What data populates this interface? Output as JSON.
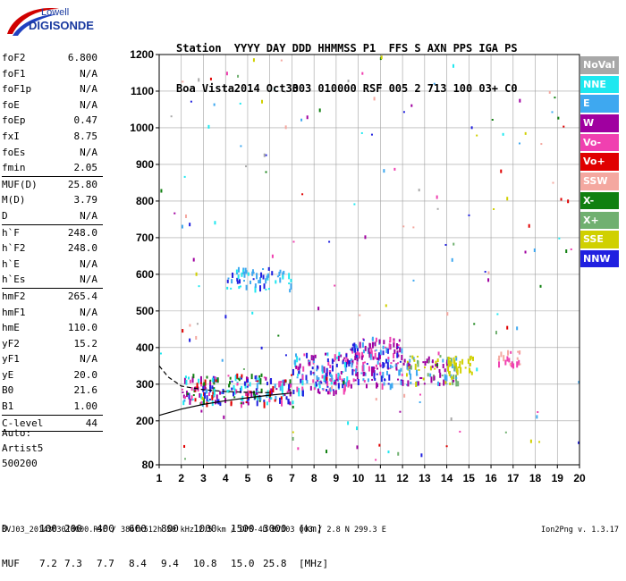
{
  "logo": {
    "line1": "Lowell",
    "line2": "DIGISONDE"
  },
  "header": {
    "columns": [
      {
        "name": "Station",
        "value": "Boa Vista"
      },
      {
        "name": "YYYY",
        "value": "2014"
      },
      {
        "name": "DAY",
        "value": "Oct30"
      },
      {
        "name": "DDD",
        "value": "303"
      },
      {
        "name": "HHMMSS",
        "value": "010000"
      },
      {
        "name": "P1",
        "value": "RSF"
      },
      {
        "name": "FFS",
        "value": "005"
      },
      {
        "name": "S",
        "value": "2"
      },
      {
        "name": "AXN",
        "value": "713"
      },
      {
        "name": "PPS",
        "value": "100"
      },
      {
        "name": "IGA",
        "value": "03+"
      },
      {
        "name": "PS",
        "value": "C0"
      }
    ]
  },
  "params": {
    "block1": [
      {
        "name": "foF2",
        "value": "6.800"
      },
      {
        "name": "foF1",
        "value": "N/A"
      },
      {
        "name": "foF1p",
        "value": "N/A"
      },
      {
        "name": "foE",
        "value": "N/A"
      },
      {
        "name": "foEp",
        "value": "0.47"
      },
      {
        "name": "fxI",
        "value": "8.75"
      },
      {
        "name": "foEs",
        "value": "N/A"
      },
      {
        "name": "fmin",
        "value": "2.05"
      }
    ],
    "block2": [
      {
        "name": "MUF(D)",
        "value": "25.80"
      },
      {
        "name": "M(D)",
        "value": "3.79"
      },
      {
        "name": "D",
        "value": "N/A"
      }
    ],
    "block3": [
      {
        "name": "h`F",
        "value": "248.0"
      },
      {
        "name": "h`F2",
        "value": "248.0"
      },
      {
        "name": "h`E",
        "value": "N/A"
      },
      {
        "name": "h`Es",
        "value": "N/A"
      }
    ],
    "block4": [
      {
        "name": "hmF2",
        "value": "265.4"
      },
      {
        "name": "hmF1",
        "value": "N/A"
      },
      {
        "name": "hmE",
        "value": "110.0"
      },
      {
        "name": "yF2",
        "value": "15.2"
      },
      {
        "name": "yF1",
        "value": "N/A"
      },
      {
        "name": "yE",
        "value": "20.0"
      },
      {
        "name": "B0",
        "value": "21.6"
      },
      {
        "name": "B1",
        "value": "1.00"
      }
    ],
    "block5": [
      {
        "name": "C-level",
        "value": "44"
      }
    ]
  },
  "auto": {
    "line1": "Auto:",
    "line2": "Artist5",
    "line3": "500200"
  },
  "legend": [
    {
      "label": "NoVal",
      "color": "#a8a8a8"
    },
    {
      "label": "NNE",
      "color": "#1ee8f0"
    },
    {
      "label": "E",
      "color": "#3ea8f0"
    },
    {
      "label": "W",
      "color": "#a000a0"
    },
    {
      "label": "Vo-",
      "color": "#f040b0"
    },
    {
      "label": "Vo+",
      "color": "#e00000"
    },
    {
      "label": "SSW",
      "color": "#f4a8a0"
    },
    {
      "label": "X-",
      "color": "#108010"
    },
    {
      "label": "X+",
      "color": "#70b070"
    },
    {
      "label": "SSE",
      "color": "#d0d000"
    },
    {
      "label": "NNW",
      "color": "#2020e0"
    }
  ],
  "muf_table": {
    "d_label": "D",
    "d_values": [
      "100",
      "200",
      "400",
      "600",
      "800",
      "1000",
      "1500",
      "3000"
    ],
    "d_unit": "[km]",
    "muf_label": "MUF",
    "muf_values": [
      "7.2",
      "7.3",
      "7.7",
      "8.4",
      "9.4",
      "10.8",
      "15.0",
      "25.8"
    ],
    "muf_unit": "[MHz]"
  },
  "footer": "BVJ03_2014303010000.RSF / 384fx512h 50 kHz 2.5 km / DPS-4D BVJ03 003 / 2.8 N 299.3 E",
  "version": "Ion2Png v. 1.3.17",
  "chart_data": {
    "type": "scatter",
    "title": "",
    "xlabel": "",
    "ylabel": "",
    "xlim": [
      1,
      20
    ],
    "ylim": [
      80,
      1200
    ],
    "x_ticks": [
      1,
      2,
      3,
      4,
      5,
      6,
      7,
      8,
      9,
      10,
      11,
      12,
      13,
      14,
      15,
      16,
      17,
      18,
      19,
      20
    ],
    "y_ticks": [
      80,
      200,
      300,
      400,
      500,
      600,
      700,
      800,
      900,
      1000,
      1100,
      1200
    ],
    "grid": true,
    "legend_position": "right",
    "series": [
      {
        "label": "NoVal",
        "color": "#a8a8a8"
      },
      {
        "label": "NNE",
        "color": "#1ee8f0"
      },
      {
        "label": "E",
        "color": "#3ea8f0"
      },
      {
        "label": "W",
        "color": "#a000a0"
      },
      {
        "label": "Vo-",
        "color": "#f040b0"
      },
      {
        "label": "Vo+",
        "color": "#e00000"
      },
      {
        "label": "SSW",
        "color": "#f4a8a0"
      },
      {
        "label": "X-",
        "color": "#108010"
      },
      {
        "label": "X+",
        "color": "#70b070"
      },
      {
        "label": "SSE",
        "color": "#d0d000"
      },
      {
        "label": "NNW",
        "color": "#2020e0"
      }
    ],
    "clusters": [
      {
        "x_range": [
          2.0,
          7.0
        ],
        "y_range": [
          250,
          330
        ],
        "colors": [
          "#1ee8f0",
          "#3ea8f0",
          "#a000a0",
          "#f040b0",
          "#2020e0",
          "#108010",
          "#e00000"
        ],
        "count": 220
      },
      {
        "x_range": [
          7.0,
          9.5
        ],
        "y_range": [
          280,
          390
        ],
        "colors": [
          "#3ea8f0",
          "#1ee8f0",
          "#f040b0",
          "#a000a0",
          "#2020e0"
        ],
        "count": 150
      },
      {
        "x_range": [
          9.5,
          12.0
        ],
        "y_range": [
          300,
          430
        ],
        "colors": [
          "#a000a0",
          "#2020e0",
          "#f040b0",
          "#3ea8f0"
        ],
        "count": 170
      },
      {
        "x_range": [
          12.0,
          14.5
        ],
        "y_range": [
          300,
          380
        ],
        "colors": [
          "#70b070",
          "#d0d000",
          "#3ea8f0",
          "#a000a0"
        ],
        "count": 100
      },
      {
        "x_range": [
          14.0,
          15.2
        ],
        "y_range": [
          330,
          380
        ],
        "colors": [
          "#d0d000"
        ],
        "count": 25
      },
      {
        "x_range": [
          16.3,
          17.3
        ],
        "y_range": [
          350,
          395
        ],
        "colors": [
          "#f040b0",
          "#f4a8a0"
        ],
        "count": 22
      },
      {
        "x_range": [
          4.0,
          7.0
        ],
        "y_range": [
          560,
          620
        ],
        "colors": [
          "#2020e0",
          "#3ea8f0",
          "#1ee8f0"
        ],
        "count": 60
      }
    ],
    "curves": [
      {
        "style": "dashed",
        "x": [
          1.0,
          1.4,
          2.0,
          3.0,
          4.0,
          5.0,
          6.0
        ],
        "y": [
          350,
          320,
          295,
          285,
          280,
          278,
          277
        ]
      },
      {
        "style": "solid",
        "x": [
          1.0,
          2.0,
          3.0,
          4.0,
          5.0,
          6.0,
          7.0
        ],
        "y": [
          215,
          232,
          245,
          255,
          263,
          270,
          276
        ]
      }
    ]
  }
}
